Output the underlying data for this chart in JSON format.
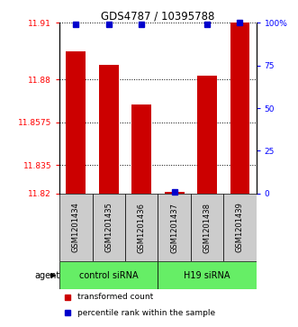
{
  "title": "GDS4787 / 10395788",
  "categories": [
    "GSM1201434",
    "GSM1201435",
    "GSM1201436",
    "GSM1201437",
    "GSM1201438",
    "GSM1201439"
  ],
  "bar_values": [
    11.895,
    11.888,
    11.867,
    11.821,
    11.882,
    11.91
  ],
  "percentile_values": [
    99,
    99,
    99,
    1,
    99,
    100
  ],
  "bar_color": "#cc0000",
  "dot_color": "#0000cc",
  "ymin": 11.82,
  "ymax": 11.91,
  "yticks_left": [
    11.82,
    11.835,
    11.8575,
    11.88,
    11.91
  ],
  "ytick_labels_left": [
    "11.82",
    "11.835",
    "11.8575",
    "11.88",
    "11.91"
  ],
  "yticks_right": [
    0,
    25,
    50,
    75,
    100
  ],
  "ytick_labels_right": [
    "0",
    "25",
    "50",
    "75",
    "100%"
  ],
  "group1_label": "control siRNA",
  "group1_indices": [
    0,
    1,
    2
  ],
  "group2_label": "H19 siRNA",
  "group2_indices": [
    3,
    4,
    5
  ],
  "agent_label": "agent",
  "legend_items": [
    {
      "color": "#cc0000",
      "label": "transformed count"
    },
    {
      "color": "#0000cc",
      "label": "percentile rank within the sample"
    }
  ],
  "group_bg_color": "#66ee66",
  "xlabel_bg_color": "#cccccc",
  "fig_width": 3.31,
  "fig_height": 3.63,
  "bar_width": 0.6
}
